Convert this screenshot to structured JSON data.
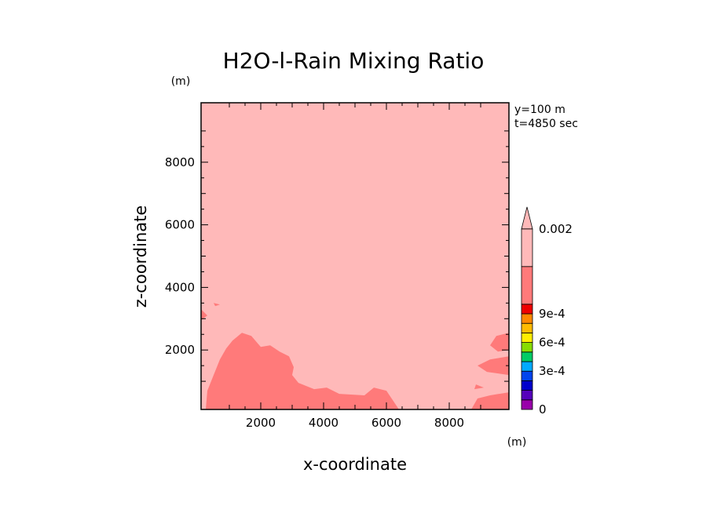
{
  "chart_data": {
    "type": "contour",
    "title": "H2O-l-Rain Mixing Ratio",
    "xlabel": "x-coordinate",
    "ylabel": "z-coordinate",
    "x_unit": "(m)",
    "z_unit": "(m)",
    "xlim": [
      100,
      9900
    ],
    "ylim": [
      100,
      9900
    ],
    "x_ticks": [
      2000,
      4000,
      6000,
      8000
    ],
    "y_ticks": [
      2000,
      4000,
      6000,
      8000
    ],
    "annotations": [
      "y=100 m",
      "t=4850 sec"
    ],
    "field_color": "#ffb9b9",
    "contour_regions": [
      {
        "color": "#ff7a7a",
        "points": [
          [
            250,
            100
          ],
          [
            300,
            700
          ],
          [
            500,
            1200
          ],
          [
            700,
            1700
          ],
          [
            900,
            2050
          ],
          [
            1100,
            2300
          ],
          [
            1400,
            2550
          ],
          [
            1700,
            2450
          ],
          [
            2000,
            2100
          ],
          [
            2300,
            2150
          ],
          [
            2600,
            1950
          ],
          [
            2900,
            1800
          ],
          [
            3050,
            1450
          ],
          [
            3000,
            1200
          ],
          [
            3200,
            950
          ],
          [
            3700,
            750
          ],
          [
            4100,
            800
          ],
          [
            4500,
            600
          ],
          [
            5300,
            550
          ],
          [
            5600,
            800
          ],
          [
            6000,
            700
          ],
          [
            6400,
            100
          ]
        ]
      },
      {
        "color": "#ff7a7a",
        "points": [
          [
            9900,
            650
          ],
          [
            9300,
            550
          ],
          [
            8900,
            450
          ],
          [
            8700,
            100
          ],
          [
            9900,
            100
          ]
        ]
      },
      {
        "color": "#ff7a7a",
        "points": [
          [
            9900,
            1800
          ],
          [
            9300,
            1700
          ],
          [
            8900,
            1500
          ],
          [
            9200,
            1300
          ],
          [
            9900,
            1200
          ]
        ]
      },
      {
        "color": "#ff7a7a",
        "points": [
          [
            9900,
            2550
          ],
          [
            9500,
            2450
          ],
          [
            9300,
            2150
          ],
          [
            9550,
            1950
          ],
          [
            9900,
            2000
          ]
        ]
      },
      {
        "color": "#ff7a7a",
        "points": [
          [
            100,
            3300
          ],
          [
            300,
            3100
          ],
          [
            100,
            2950
          ]
        ]
      },
      {
        "color": "#ff7a7a",
        "points": [
          [
            500,
            3500
          ],
          [
            700,
            3450
          ],
          [
            550,
            3400
          ]
        ]
      },
      {
        "color": "#ff7a7a",
        "points": [
          [
            8800,
            750
          ],
          [
            9100,
            800
          ],
          [
            8850,
            900
          ]
        ]
      }
    ],
    "colorbar": {
      "levels": [
        {
          "value": 0,
          "color": "#9900aa",
          "label": "0"
        },
        {
          "value": 0.0001,
          "color": "#5500bb",
          "label": ""
        },
        {
          "value": 0.0002,
          "color": "#0000cc",
          "label": ""
        },
        {
          "value": 0.0003,
          "color": "#0044ee",
          "label": "3e-4"
        },
        {
          "value": 0.0004,
          "color": "#00aaff",
          "label": ""
        },
        {
          "value": 0.0005,
          "color": "#00cc66",
          "label": ""
        },
        {
          "value": 0.0006,
          "color": "#88dd00",
          "label": "6e-4"
        },
        {
          "value": 0.0007,
          "color": "#ffee00",
          "label": ""
        },
        {
          "value": 0.0008,
          "color": "#ffbb00",
          "label": ""
        },
        {
          "value": 0.0009,
          "color": "#ff8800",
          "label": "9e-4"
        },
        {
          "value": 0.001,
          "color": "#ee0000",
          "label": ""
        },
        {
          "value": 0.0015,
          "color": "#ff7a7a",
          "label": ""
        },
        {
          "value": 0.002,
          "color": "#ffb9b9",
          "label": "0.002"
        }
      ]
    }
  }
}
